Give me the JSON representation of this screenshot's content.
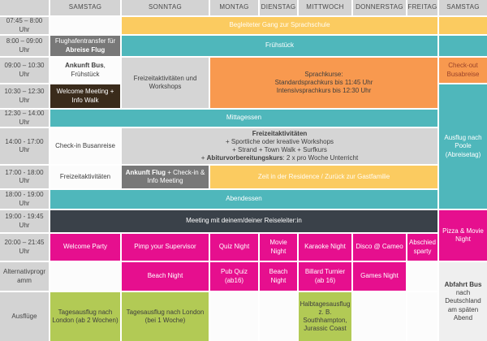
{
  "header": {
    "corner": "",
    "days": [
      "SAMSTAG",
      "SONNTAG",
      "MONTAG",
      "DIENSTAG",
      "MITTWOCH",
      "DONNERSTAG",
      "FREITAG",
      "SAMSTAG"
    ]
  },
  "row_labels": [
    "07:45 – 8:00 Uhr",
    "8:00 – 09:00 Uhr",
    "09:00 – 10:30 Uhr",
    "10:30 – 12:30 Uhr",
    "12:30 – 14:00 Uhr",
    "14:00 - 17:00 Uhr",
    "17:00 - 18:00 Uhr",
    "18:00 - 19:00 Uhr",
    "19:00 - 19:45 Uhr",
    "20:00 – 21:45 Uhr",
    "Alternativprogramm",
    "Ausflüge"
  ],
  "cells": {
    "begleiteter_gang": "Begleiteter Gang zur Sprachschule",
    "flughafentransfer": {
      "regular": "Flughafentransfer für",
      "bold": "Abreise Flug"
    },
    "fruehstueck": "Frühstück",
    "ankunft_bus": {
      "bold": "Ankunft Bus",
      "rest": ", Frühstück"
    },
    "freizeit_workshops": "Freizeitaktivitäten und Workshops",
    "sprachkurse": {
      "line1": "Sprachkurse:",
      "line2": "Standardsprachkurs bis 11:45 Uhr",
      "line3": "Intensivsprachkurs bis 12:30 Uhr"
    },
    "checkout": "Check-out Busabreise",
    "welcome_meeting": "Welcome Meeting + Info Walk",
    "ausflug_poole": "Ausflug nach Poole (Abreisetag)",
    "mittagessen": "Mittagessen",
    "checkin_busanreise": "Check-in Busanreise",
    "freizeit_block": {
      "title": "Freizeitaktivitäten",
      "line2": "+ Sportliche oder kreative Workshops",
      "line3": "+ Strand + Town Walk + Surfkurs",
      "line4_prefix": "+ ",
      "line4_bold": "Abiturvorbereitungskurs",
      "line4_rest": ": 2 x pro Woche Unterricht"
    },
    "freizeitaktivitaeten": "Freizeitaktivitäten",
    "ankunft_flug": {
      "bold": "Ankunft Flug",
      "rest": "+ Check-in & Info Meeting"
    },
    "residence": "Zeit in der Residence / Zurück zur Gastfamilie",
    "abendessen": "Abendessen",
    "meeting": "Meeting mit deinem/deiner Reiseleiter:in",
    "pizza_movie": "Pizza & Movie Night",
    "welcome_party": "Welcome Party",
    "pimp_supervisor": "Pimp your Supervisor",
    "quiz_night": "Quiz Night",
    "movie_night": "Movie Night",
    "karaoke_night": "Karaoke Night",
    "disco_cameo": "Disco @ Cameo",
    "abschiedsparty": "Abschiedsparty",
    "beach_night_sonntag": "Beach Night",
    "pub_quiz": "Pub Quiz (ab16)",
    "beach_night_dienstag": "Beach Night",
    "billard_turnier": "Billard Turnier (ab 16)",
    "games_night": "Games Night",
    "abfahrt_bus": {
      "bold": "Abfahrt Bus",
      "rest": "nach Deutschland am späten Abend"
    },
    "london_2_wochen": "Tagesausflug nach London (ab 2 Wochen)",
    "london_1_woche": "Tagesausflug nach London (bei 1 Woche)",
    "halbtagesausflug": "Halbtagesausflug z. B. Southhampton, Jurassic Coast"
  },
  "palette": {
    "yellow": "#FBCB60",
    "teal": "#4FB7BB",
    "orange": "#F8994F",
    "magenta": "#E60F8E",
    "green": "#B2CA55",
    "header_gray": "#D3D3D3",
    "activity_gray": "#D5D5D5",
    "dark_gray": "#787878",
    "dark_brown": "#3A2B1B",
    "dark_slate": "#3A4149",
    "light_gray": "#EFEFEF",
    "checkout_text": "#9A432A"
  }
}
